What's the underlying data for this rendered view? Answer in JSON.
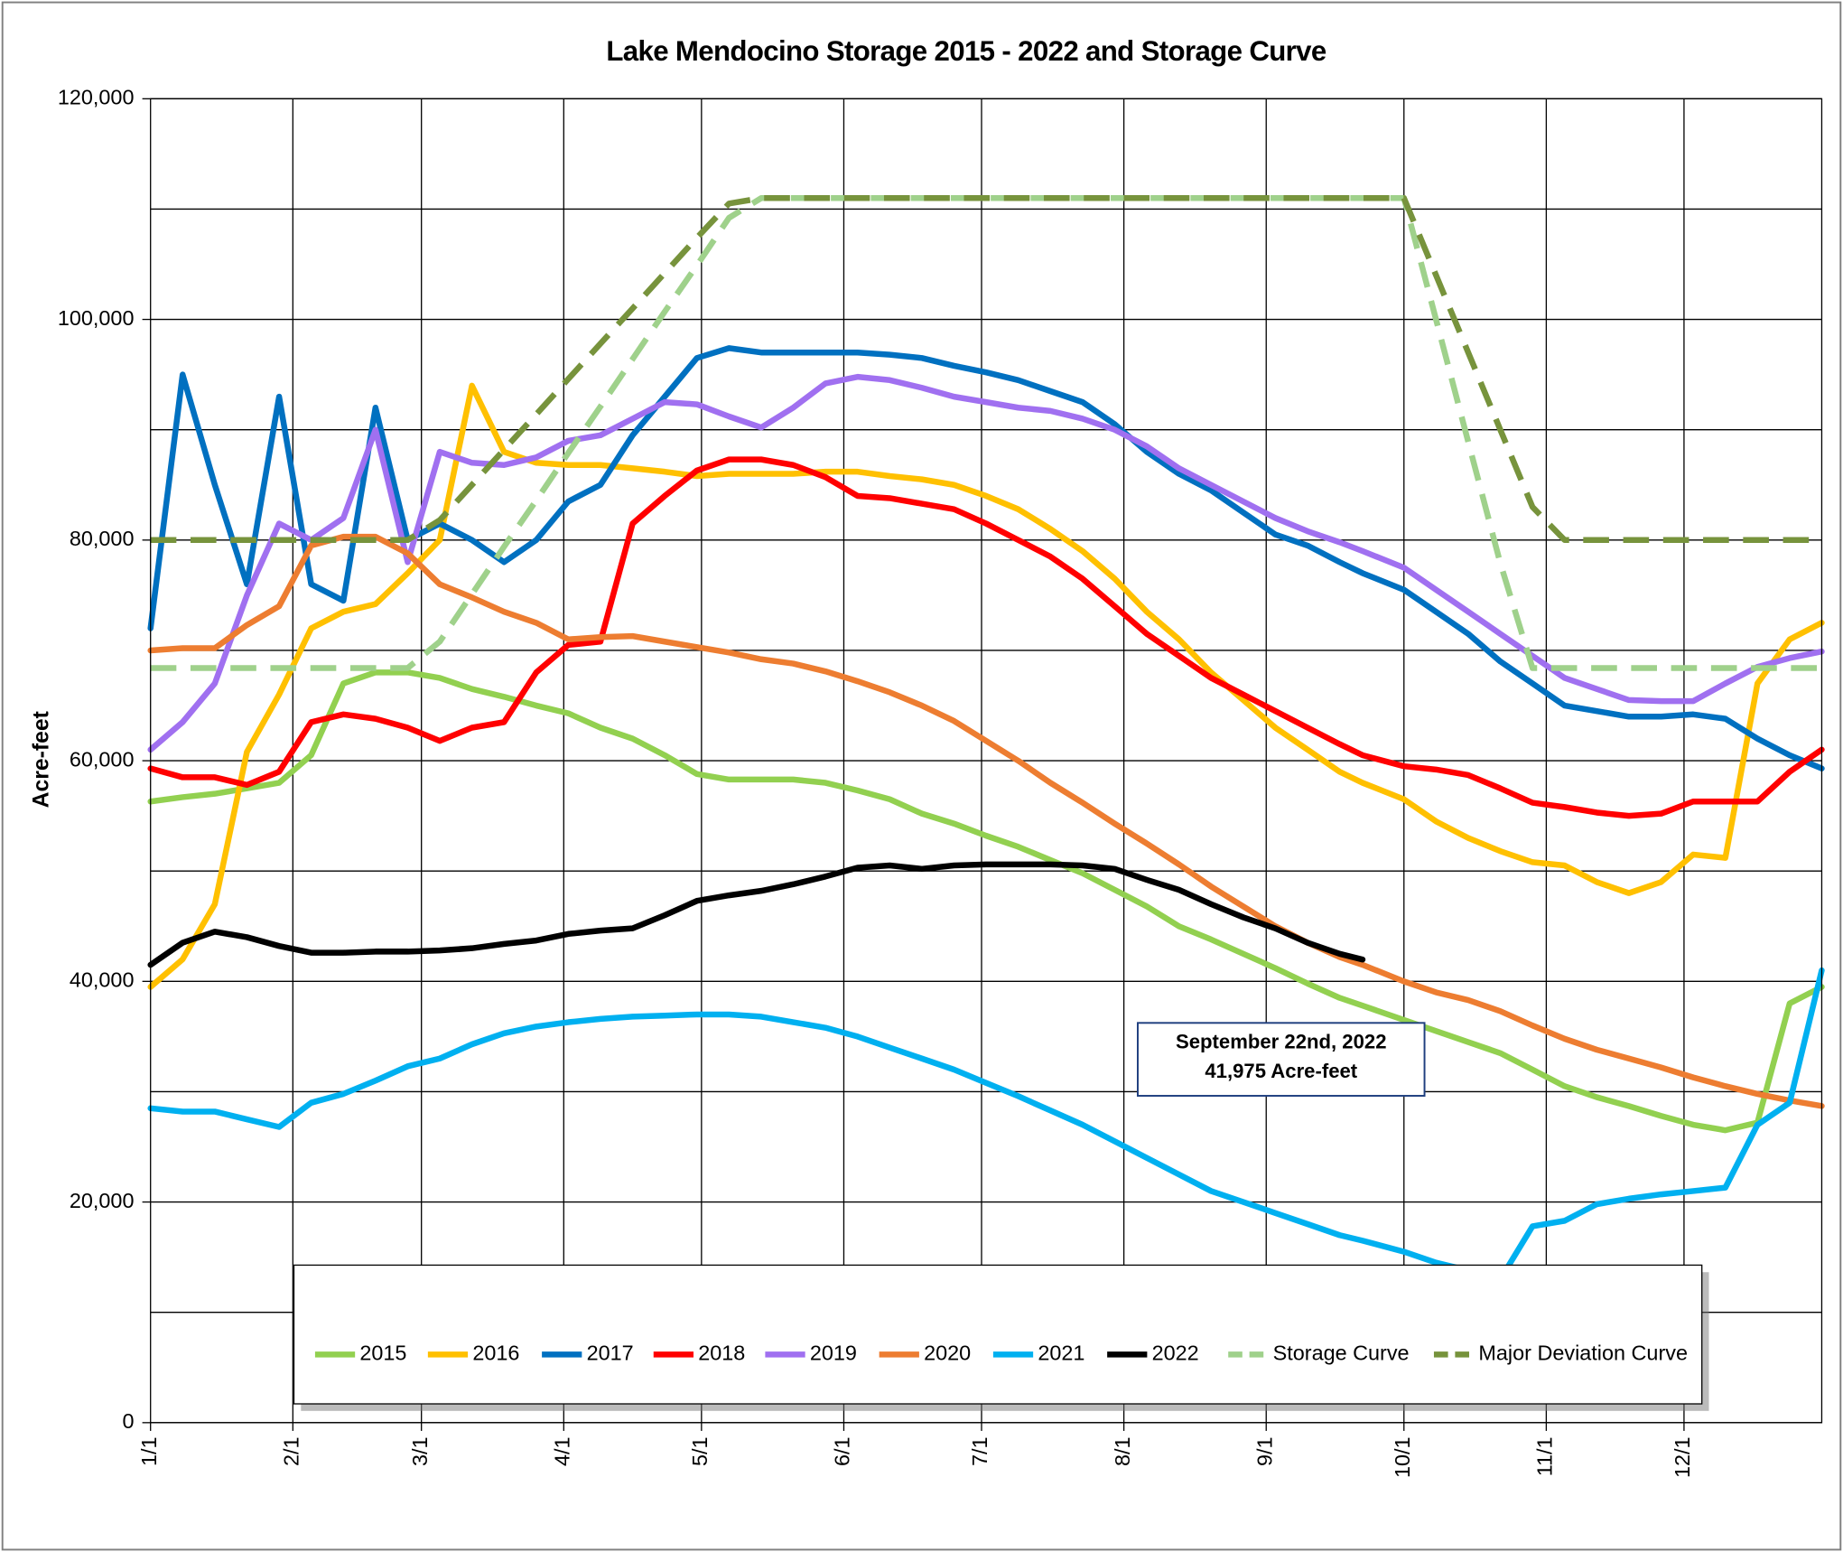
{
  "chart_data": {
    "type": "line",
    "title": "Lake Mendocino Storage 2015 - 2022 and Storage Curve",
    "ylabel": "Acre-feet",
    "annotation": [
      "September 22nd, 2022",
      "41,975 Acre-feet"
    ],
    "x": [
      "1/1",
      "1/8",
      "1/15",
      "1/22",
      "1/29",
      "2/5",
      "2/12",
      "2/19",
      "2/26",
      "3/5",
      "3/12",
      "3/19",
      "3/26",
      "4/2",
      "4/9",
      "4/16",
      "4/23",
      "4/30",
      "5/7",
      "5/14",
      "5/21",
      "5/28",
      "6/4",
      "6/11",
      "6/18",
      "6/25",
      "7/2",
      "7/9",
      "7/16",
      "7/23",
      "7/30",
      "8/6",
      "8/13",
      "8/20",
      "8/27",
      "9/3",
      "9/10",
      "9/17",
      "9/22",
      "10/1",
      "10/8",
      "10/15",
      "10/22",
      "10/29",
      "11/5",
      "11/12",
      "11/19",
      "11/26",
      "12/3",
      "12/10",
      "12/17",
      "12/24",
      "12/31"
    ],
    "xlim": [
      "1/1",
      "12/31"
    ],
    "xticks": [
      "1/1",
      "2/1",
      "3/1",
      "4/1",
      "5/1",
      "6/1",
      "7/1",
      "8/1",
      "9/1",
      "10/1",
      "11/1",
      "12/1"
    ],
    "ylim": [
      0,
      120000
    ],
    "yticks": [
      0,
      {
        "value": 20000,
        "label": "20,000"
      },
      {
        "value": 40000,
        "label": "40,000"
      },
      {
        "value": 60000,
        "label": "60,000"
      },
      {
        "value": 80000,
        "label": "80,000"
      },
      {
        "value": 100000,
        "label": "100,000"
      },
      {
        "value": 120000,
        "label": "120,000"
      }
    ],
    "yminorticks": [
      10000,
      30000,
      50000,
      70000,
      90000,
      110000
    ],
    "grid": true,
    "legend": "bottom",
    "series": [
      {
        "name": "2015",
        "color": "#92d050",
        "values": [
          56300,
          56700,
          57000,
          57500,
          58000,
          60500,
          67000,
          68000,
          68000,
          67500,
          66500,
          65800,
          65000,
          64300,
          63000,
          62000,
          60500,
          58800,
          58300,
          58300,
          58300,
          58000,
          57300,
          56500,
          55200,
          54300,
          53200,
          52200,
          51000,
          49800,
          48300,
          46800,
          45000,
          43800,
          42500,
          41200,
          39800,
          38500,
          37800,
          36500,
          35500,
          34500,
          33500,
          32000,
          30500,
          29500,
          28700,
          27800,
          27000,
          26500,
          27200,
          38000,
          39500
        ]
      },
      {
        "name": "2016",
        "color": "#ffc000",
        "values": [
          39500,
          42000,
          47000,
          60800,
          66000,
          72000,
          73500,
          74200,
          77000,
          80000,
          94000,
          88000,
          87000,
          86800,
          86800,
          86500,
          86200,
          85800,
          86000,
          86000,
          86000,
          86200,
          86200,
          85800,
          85500,
          85000,
          84000,
          82800,
          81000,
          79000,
          76500,
          73500,
          71000,
          68000,
          65500,
          63000,
          61000,
          59000,
          58000,
          56500,
          54500,
          53000,
          51800,
          50800,
          50500,
          49000,
          48000,
          49000,
          51500,
          51200,
          67000,
          71000,
          72500
        ]
      },
      {
        "name": "2017",
        "color": "#0070c0",
        "values": [
          72000,
          95000,
          85000,
          76000,
          93000,
          76000,
          74500,
          92000,
          80000,
          81500,
          80000,
          78000,
          80000,
          83500,
          85000,
          89500,
          93000,
          96500,
          97400,
          97000,
          97000,
          97000,
          97000,
          96800,
          96500,
          95800,
          95200,
          94500,
          93500,
          92500,
          90500,
          88000,
          86000,
          84500,
          82500,
          80500,
          79500,
          78000,
          77000,
          75500,
          73500,
          71500,
          69000,
          67000,
          65000,
          64500,
          64000,
          64000,
          64200,
          63800,
          62000,
          60500,
          59300
        ]
      },
      {
        "name": "2018",
        "color": "#ff0000",
        "values": [
          59300,
          58500,
          58500,
          57800,
          59000,
          63500,
          64200,
          63800,
          63000,
          61800,
          63000,
          63500,
          68000,
          70500,
          70800,
          81500,
          84000,
          86300,
          87300,
          87300,
          86800,
          85700,
          84000,
          83800,
          83300,
          82800,
          81500,
          80000,
          78500,
          76500,
          74000,
          71500,
          69500,
          67500,
          66000,
          64500,
          63000,
          61500,
          60500,
          59500,
          59200,
          58700,
          57500,
          56200,
          55800,
          55300,
          55000,
          55200,
          56300,
          56300,
          56300,
          59000,
          61000
        ]
      },
      {
        "name": "2019",
        "color": "#a070f0",
        "values": [
          61000,
          63500,
          67000,
          75000,
          81500,
          80000,
          82000,
          90000,
          78000,
          88000,
          87000,
          86800,
          87500,
          89000,
          89500,
          91000,
          92500,
          92300,
          91200,
          90200,
          92000,
          94200,
          94800,
          94500,
          93800,
          93000,
          92500,
          92000,
          91700,
          91000,
          90000,
          88500,
          86500,
          85000,
          83500,
          82000,
          80800,
          79800,
          79000,
          77500,
          75500,
          73500,
          71500,
          69500,
          67500,
          66500,
          65500,
          65400,
          65400,
          67000,
          68500,
          69300,
          69900
        ]
      },
      {
        "name": "2020",
        "color": "#ed7d31",
        "values": [
          70000,
          70200,
          70200,
          72300,
          74000,
          79500,
          80300,
          80300,
          78800,
          76000,
          74800,
          73500,
          72500,
          71000,
          71200,
          71300,
          70800,
          70300,
          69800,
          69200,
          68800,
          68100,
          67200,
          66200,
          65000,
          63600,
          61800,
          60000,
          58000,
          56200,
          54300,
          52500,
          50600,
          48600,
          46800,
          45000,
          43500,
          42200,
          41500,
          40000,
          39000,
          38300,
          37300,
          36000,
          34800,
          33800,
          33000,
          32200,
          31300,
          30500,
          29800,
          29200,
          28700
        ]
      },
      {
        "name": "2021",
        "color": "#00b0f0",
        "values": [
          28500,
          28200,
          28200,
          27500,
          26800,
          29000,
          29800,
          31000,
          32300,
          33000,
          34300,
          35300,
          35900,
          36300,
          36600,
          36800,
          36900,
          37000,
          37000,
          36800,
          36300,
          35800,
          35000,
          34000,
          33000,
          32000,
          30800,
          29600,
          28300,
          27000,
          25500,
          24000,
          22500,
          21000,
          20000,
          19000,
          18000,
          17000,
          16500,
          15500,
          14500,
          13800,
          13000,
          17800,
          18300,
          19800,
          20300,
          20700,
          21000,
          21300,
          27000,
          29000,
          41000
        ]
      },
      {
        "name": "2022",
        "color": "#000000",
        "values": [
          41500,
          43500,
          44500,
          44000,
          43200,
          42600,
          42600,
          42700,
          42700,
          42800,
          43000,
          43400,
          43700,
          44300,
          44600,
          44800,
          46000,
          47300,
          47800,
          48200,
          48800,
          49500,
          50300,
          50500,
          50200,
          50500,
          50600,
          50600,
          50600,
          50500,
          50200,
          49200,
          48300,
          47000,
          45800,
          44800,
          43500,
          42500,
          41975,
          null,
          null,
          null,
          null,
          null,
          null,
          null,
          null,
          null,
          null,
          null,
          null,
          null,
          null
        ]
      },
      {
        "name": "Storage Curve",
        "color": "#9fd18b",
        "dash": true,
        "values": [
          68400,
          68400,
          68400,
          68400,
          68400,
          68400,
          68400,
          68400,
          68400,
          70800,
          75100,
          79400,
          83600,
          87900,
          92100,
          96400,
          100700,
          104900,
          109200,
          111000,
          111000,
          111000,
          111000,
          111000,
          111000,
          111000,
          111000,
          111000,
          111000,
          111000,
          111000,
          111000,
          111000,
          111000,
          111000,
          111000,
          111000,
          111000,
          111000,
          111000,
          100000,
          88900,
          77900,
          68400,
          68400,
          68400,
          68400,
          68400,
          68400,
          68400,
          68400,
          68400,
          68400
        ]
      },
      {
        "name": "Major Deviation Curve",
        "color": "#77933c",
        "dash": true,
        "values": [
          80000,
          80000,
          80000,
          80000,
          80000,
          80000,
          80000,
          80000,
          80000,
          81800,
          85000,
          88200,
          91400,
          94600,
          97800,
          101000,
          104200,
          107400,
          110500,
          111000,
          111000,
          111000,
          111000,
          111000,
          111000,
          111000,
          111000,
          111000,
          111000,
          111000,
          111000,
          111000,
          111000,
          111000,
          111000,
          111000,
          111000,
          111000,
          111000,
          111000,
          104000,
          97000,
          90000,
          83000,
          80000,
          80000,
          80000,
          80000,
          80000,
          80000,
          80000,
          80000,
          80000
        ]
      }
    ]
  }
}
